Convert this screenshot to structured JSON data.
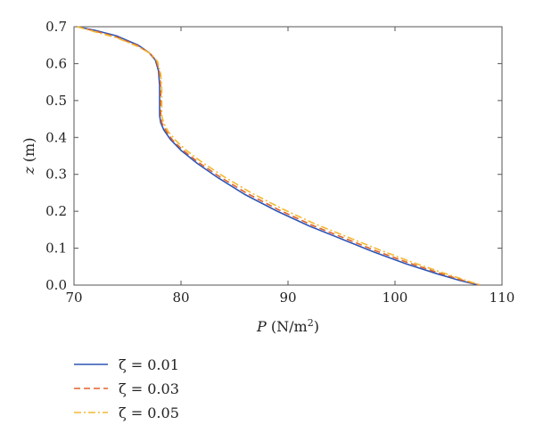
{
  "chart_data": {
    "type": "line",
    "xlabel": {
      "symbol": "P",
      "unit_prefix": " (N/m",
      "unit_exp": "2",
      "unit_suffix": ")"
    },
    "ylabel": {
      "symbol": "z",
      "unit": " (m)"
    },
    "xlim": [
      70,
      110
    ],
    "ylim": [
      0.0,
      0.7
    ],
    "xticks": [
      "70",
      "80",
      "90",
      "100",
      "110"
    ],
    "yticks": [
      "0.0",
      "0.1",
      "0.2",
      "0.3",
      "0.4",
      "0.5",
      "0.6",
      "0.7"
    ],
    "grid": false,
    "legend_position": "bottom-left-outside",
    "series": [
      {
        "name": "ζ = 0.01",
        "color": "#2f55b5",
        "dash": "solid",
        "points": [
          [
            70.3,
            0.7
          ],
          [
            72.0,
            0.69
          ],
          [
            74.0,
            0.675
          ],
          [
            76.0,
            0.65
          ],
          [
            77.0,
            0.63
          ],
          [
            77.6,
            0.61
          ],
          [
            77.9,
            0.58
          ],
          [
            78.0,
            0.54
          ],
          [
            78.0,
            0.5
          ],
          [
            78.0,
            0.46
          ],
          [
            78.1,
            0.44
          ],
          [
            78.4,
            0.42
          ],
          [
            79.0,
            0.395
          ],
          [
            80.0,
            0.365
          ],
          [
            81.5,
            0.33
          ],
          [
            83.5,
            0.29
          ],
          [
            86.0,
            0.245
          ],
          [
            89.0,
            0.2
          ],
          [
            92.0,
            0.16
          ],
          [
            95.0,
            0.125
          ],
          [
            98.0,
            0.09
          ],
          [
            101.0,
            0.058
          ],
          [
            104.0,
            0.03
          ],
          [
            106.0,
            0.013
          ],
          [
            107.8,
            0.0
          ]
        ]
      },
      {
        "name": "ζ = 0.03",
        "color": "#e0632a",
        "dash": "dashed",
        "points": [
          [
            70.3,
            0.7
          ],
          [
            72.0,
            0.688
          ],
          [
            74.0,
            0.672
          ],
          [
            76.0,
            0.648
          ],
          [
            77.1,
            0.628
          ],
          [
            77.7,
            0.608
          ],
          [
            78.0,
            0.575
          ],
          [
            78.1,
            0.535
          ],
          [
            78.1,
            0.495
          ],
          [
            78.1,
            0.46
          ],
          [
            78.2,
            0.44
          ],
          [
            78.6,
            0.418
          ],
          [
            79.2,
            0.393
          ],
          [
            80.2,
            0.365
          ],
          [
            81.7,
            0.331
          ],
          [
            83.7,
            0.292
          ],
          [
            86.2,
            0.248
          ],
          [
            89.2,
            0.203
          ],
          [
            92.2,
            0.163
          ],
          [
            95.2,
            0.128
          ],
          [
            98.2,
            0.093
          ],
          [
            101.2,
            0.061
          ],
          [
            104.2,
            0.032
          ],
          [
            106.2,
            0.014
          ],
          [
            107.9,
            0.0
          ]
        ]
      },
      {
        "name": "ζ = 0.05",
        "color": "#f2b830",
        "dash": "dashdot",
        "points": [
          [
            70.3,
            0.7
          ],
          [
            72.0,
            0.686
          ],
          [
            74.0,
            0.67
          ],
          [
            76.0,
            0.646
          ],
          [
            77.2,
            0.626
          ],
          [
            77.8,
            0.606
          ],
          [
            78.1,
            0.572
          ],
          [
            78.2,
            0.532
          ],
          [
            78.2,
            0.492
          ],
          [
            78.2,
            0.458
          ],
          [
            78.4,
            0.438
          ],
          [
            78.8,
            0.416
          ],
          [
            79.5,
            0.392
          ],
          [
            80.5,
            0.365
          ],
          [
            82.0,
            0.332
          ],
          [
            84.0,
            0.294
          ],
          [
            86.5,
            0.251
          ],
          [
            89.5,
            0.206
          ],
          [
            92.5,
            0.166
          ],
          [
            95.5,
            0.131
          ],
          [
            98.5,
            0.096
          ],
          [
            101.5,
            0.063
          ],
          [
            104.4,
            0.034
          ],
          [
            106.4,
            0.015
          ],
          [
            108.0,
            0.0
          ]
        ]
      }
    ]
  }
}
